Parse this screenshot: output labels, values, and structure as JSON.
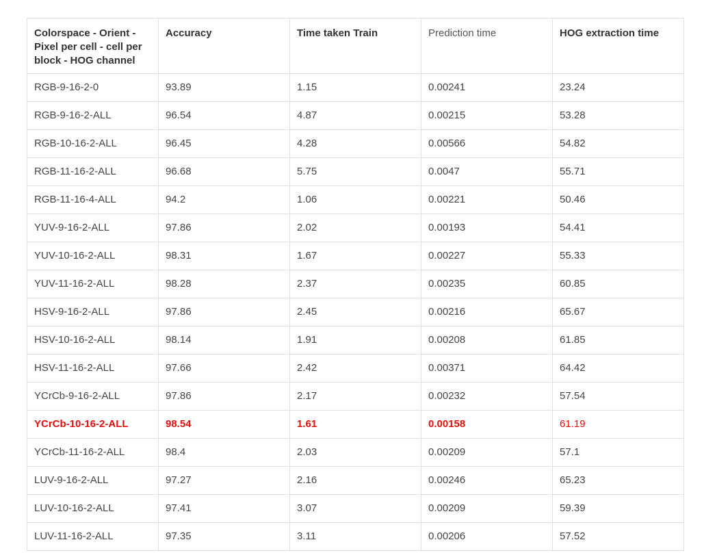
{
  "table": {
    "headers": [
      "Colorspace - Orient - Pixel per cell - cell per block - HOG channel",
      "Accuracy",
      "Time taken Train",
      "Prediction time",
      "HOG extraction time"
    ],
    "rows": [
      [
        "RGB-9-16-2-0",
        "93.89",
        "1.15",
        "0.00241",
        "23.24"
      ],
      [
        "RGB-9-16-2-ALL",
        "96.54",
        "4.87",
        "0.00215",
        "53.28"
      ],
      [
        "RGB-10-16-2-ALL",
        "96.45",
        "4.28",
        "0.00566",
        "54.82"
      ],
      [
        "RGB-11-16-2-ALL",
        "96.68",
        "5.75",
        "0.0047",
        "55.71"
      ],
      [
        "RGB-11-16-4-ALL",
        "94.2",
        "1.06",
        "0.00221",
        "50.46"
      ],
      [
        "YUV-9-16-2-ALL",
        "97.86",
        "2.02",
        "0.00193",
        "54.41"
      ],
      [
        "YUV-10-16-2-ALL",
        "98.31",
        "1.67",
        "0.00227",
        "55.33"
      ],
      [
        "YUV-11-16-2-ALL",
        "98.28",
        "2.37",
        "0.00235",
        "60.85"
      ],
      [
        "HSV-9-16-2-ALL",
        "97.86",
        "2.45",
        "0.00216",
        "65.67"
      ],
      [
        "HSV-10-16-2-ALL",
        "98.14",
        "1.91",
        "0.00208",
        "61.85"
      ],
      [
        "HSV-11-16-2-ALL",
        "97.66",
        "2.42",
        "0.00371",
        "64.42"
      ],
      [
        "YCrCb-9-16-2-ALL",
        "97.86",
        "2.17",
        "0.00232",
        "57.54"
      ],
      [
        "YCrCb-10-16-2-ALL",
        "98.54",
        "1.61",
        "0.00158",
        "61.19"
      ],
      [
        "YCrCb-11-16-2-ALL",
        "98.4",
        "2.03",
        "0.00209",
        "57.1"
      ],
      [
        "LUV-9-16-2-ALL",
        "97.27",
        "2.16",
        "0.00246",
        "65.23"
      ],
      [
        "LUV-10-16-2-ALL",
        "97.41",
        "3.07",
        "0.00209",
        "59.39"
      ],
      [
        "LUV-11-16-2-ALL",
        "97.35",
        "3.11",
        "0.00206",
        "57.52"
      ]
    ],
    "highlight_row_index": 12,
    "highlight_color": "#e60d0d"
  }
}
